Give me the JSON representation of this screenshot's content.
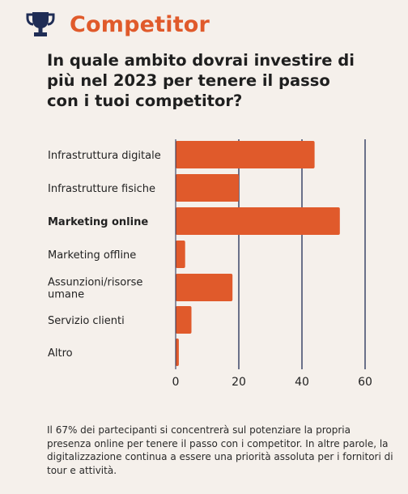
{
  "header": {
    "title": "Competitor",
    "icon": "trophy-icon",
    "title_color": "#e05a2b",
    "icon_color": "#1f2d55"
  },
  "question": "In quale ambito dovrai investire di più nel 2023 per tenere il passo con i tuoi competitor?",
  "chart_data": {
    "type": "bar",
    "orientation": "horizontal",
    "categories": [
      "Infrastruttura digitale",
      "Infrastrutture fisiche",
      "Marketing online",
      "Marketing offline",
      "Assunzioni/risorse umane",
      "Servizio clienti",
      "Altro"
    ],
    "highlighted_category": "Marketing online",
    "values": [
      44,
      20,
      52,
      3,
      18,
      5,
      1
    ],
    "xlim": [
      0,
      60
    ],
    "xticks": [
      "0",
      "20",
      "40",
      "60"
    ],
    "grid": true,
    "bar_color": "#e05a2b",
    "grid_color": "#1f2d55",
    "title": "",
    "xlabel": "",
    "ylabel": ""
  },
  "caption": "Il 67% dei partecipanti si concentrerà sul potenziare la propria presenza online per tenere il passo con i competitor. In altre parole, la digitalizzazione continua a essere una priorità assoluta per i fornitori di tour e attività."
}
